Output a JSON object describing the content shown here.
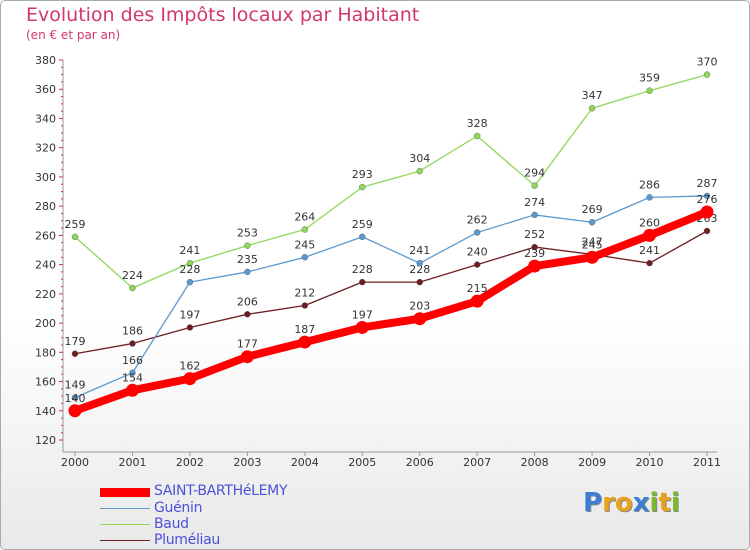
{
  "title": "Evolution des Impôts locaux par Habitant",
  "subtitle": "(en € et par an)",
  "logo": {
    "text": "Proxiti",
    "letters": [
      {
        "ch": "P",
        "color": "#3a7fd5"
      },
      {
        "ch": "r",
        "color": "#e8a21b"
      },
      {
        "ch": "o",
        "color": "#e8a21b"
      },
      {
        "ch": "x",
        "color": "#3a7fd5"
      },
      {
        "ch": "i",
        "color": "#7ab82e"
      },
      {
        "ch": "t",
        "color": "#e8a21b"
      },
      {
        "ch": "i",
        "color": "#7ab82e"
      }
    ]
  },
  "chart_data": {
    "type": "line",
    "x": [
      "2000",
      "2001",
      "2002",
      "2003",
      "2004",
      "2005",
      "2006",
      "2007",
      "2008",
      "2009",
      "2010",
      "2011"
    ],
    "ylim": [
      120,
      380
    ],
    "yticks": [
      120,
      140,
      160,
      180,
      200,
      220,
      240,
      260,
      280,
      300,
      320,
      340,
      360,
      380
    ],
    "grid": false,
    "legend": "bottom-left",
    "series": [
      {
        "name": "SAINT-BARTHéLEMY",
        "color": "#ff0000",
        "values": [
          140,
          154,
          162,
          177,
          187,
          197,
          203,
          215,
          239,
          245,
          260,
          276
        ]
      },
      {
        "name": "Guénin",
        "color": "#5b9ad0",
        "values": [
          149,
          166,
          228,
          235,
          245,
          259,
          241,
          262,
          274,
          269,
          286,
          287
        ]
      },
      {
        "name": "Baud",
        "color": "#8ed858",
        "values": [
          259,
          224,
          241,
          253,
          264,
          293,
          304,
          328,
          294,
          347,
          359,
          370
        ]
      },
      {
        "name": "Pluméliau",
        "color": "#6e1e22",
        "values": [
          179,
          186,
          197,
          206,
          212,
          228,
          228,
          240,
          252,
          247,
          241,
          263
        ]
      }
    ]
  }
}
